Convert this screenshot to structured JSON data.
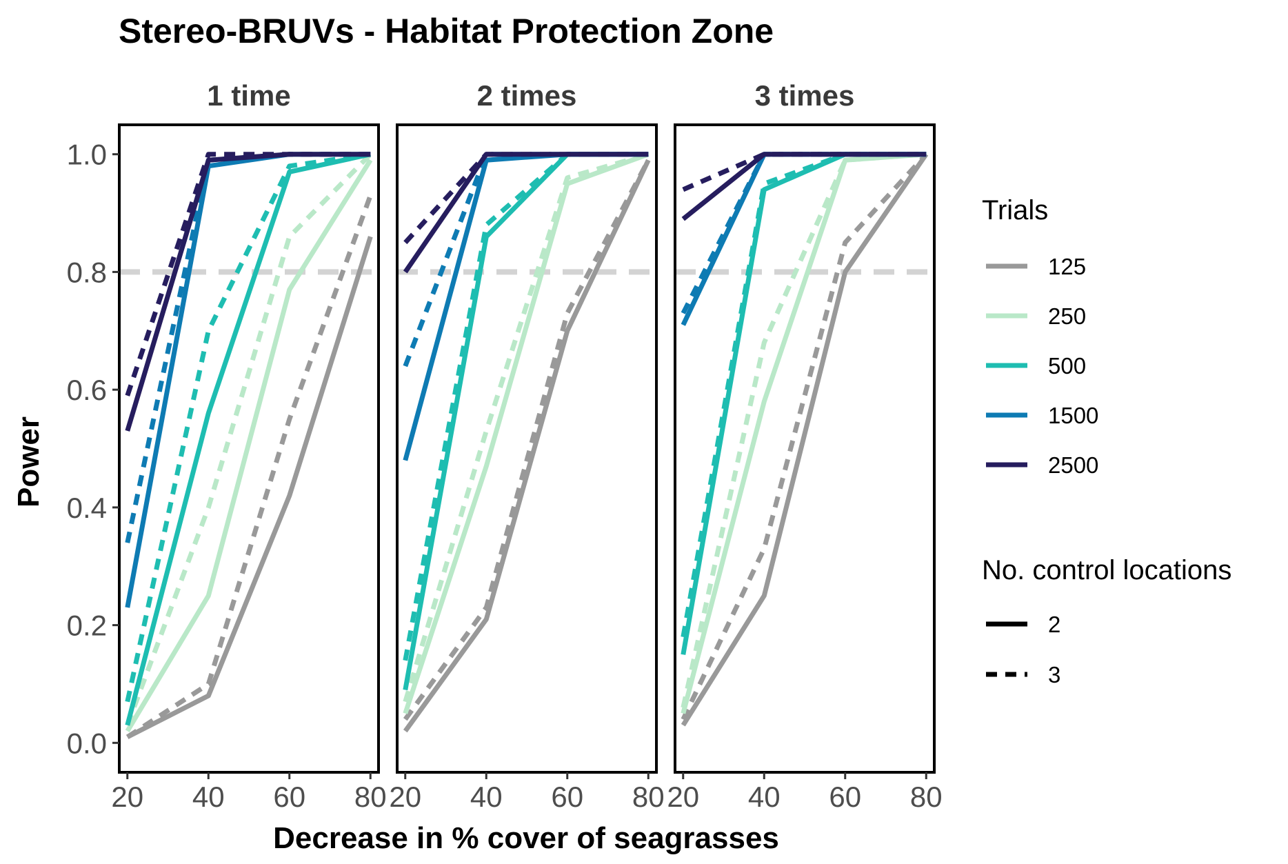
{
  "chart_data": {
    "type": "line",
    "title": "Stereo-BRUVs - Habitat Protection Zone",
    "xlabel": "Decrease in % cover of seagrasses",
    "ylabel": "Power",
    "x": [
      20,
      40,
      60,
      80
    ],
    "x_ticks": [
      "20",
      "40",
      "60",
      "80"
    ],
    "y_ticks": [
      "0.0",
      "0.2",
      "0.4",
      "0.6",
      "0.8",
      "1.0"
    ],
    "xlim": [
      18,
      82
    ],
    "ylim": [
      -0.05,
      1.05
    ],
    "reference_line": {
      "y": 0.8,
      "color": "#d3d3d3"
    },
    "grid": false,
    "legend_placement": "right",
    "legends": {
      "color": {
        "title": "Trials",
        "entries": [
          {
            "label": "125",
            "color": "#999999"
          },
          {
            "label": "250",
            "color": "#b9e8c8"
          },
          {
            "label": "500",
            "color": "#1ebdb1"
          },
          {
            "label": "1500",
            "color": "#0e7bb3"
          },
          {
            "label": "2500",
            "color": "#261d5e"
          }
        ]
      },
      "linetype": {
        "title": "No. control locations",
        "entries": [
          {
            "label": "2",
            "dash": "solid"
          },
          {
            "label": "3",
            "dash": "dashed"
          }
        ]
      }
    },
    "panels": [
      {
        "label": "1 time",
        "series": [
          {
            "trials": "125",
            "controls": "2",
            "values": [
              0.01,
              0.08,
              0.42,
              0.86
            ]
          },
          {
            "trials": "125",
            "controls": "3",
            "values": [
              0.01,
              0.1,
              0.55,
              0.93
            ]
          },
          {
            "trials": "250",
            "controls": "2",
            "values": [
              0.02,
              0.25,
              0.77,
              0.99
            ]
          },
          {
            "trials": "250",
            "controls": "3",
            "values": [
              0.03,
              0.4,
              0.86,
              1.0
            ]
          },
          {
            "trials": "500",
            "controls": "2",
            "values": [
              0.03,
              0.56,
              0.97,
              1.0
            ]
          },
          {
            "trials": "500",
            "controls": "3",
            "values": [
              0.07,
              0.7,
              0.98,
              1.0
            ]
          },
          {
            "trials": "1500",
            "controls": "2",
            "values": [
              0.23,
              0.98,
              1.0,
              1.0
            ]
          },
          {
            "trials": "1500",
            "controls": "3",
            "values": [
              0.34,
              0.99,
              1.0,
              1.0
            ]
          },
          {
            "trials": "2500",
            "controls": "2",
            "values": [
              0.53,
              0.99,
              1.0,
              1.0
            ]
          },
          {
            "trials": "2500",
            "controls": "3",
            "values": [
              0.59,
              1.0,
              1.0,
              1.0
            ]
          }
        ]
      },
      {
        "label": "2 times",
        "series": [
          {
            "trials": "125",
            "controls": "2",
            "values": [
              0.02,
              0.21,
              0.7,
              0.99
            ]
          },
          {
            "trials": "125",
            "controls": "3",
            "values": [
              0.04,
              0.23,
              0.73,
              0.99
            ]
          },
          {
            "trials": "250",
            "controls": "2",
            "values": [
              0.05,
              0.47,
              0.95,
              1.0
            ]
          },
          {
            "trials": "250",
            "controls": "3",
            "values": [
              0.07,
              0.53,
              0.96,
              1.0
            ]
          },
          {
            "trials": "500",
            "controls": "2",
            "values": [
              0.09,
              0.86,
              1.0,
              1.0
            ]
          },
          {
            "trials": "500",
            "controls": "3",
            "values": [
              0.14,
              0.88,
              1.0,
              1.0
            ]
          },
          {
            "trials": "1500",
            "controls": "2",
            "values": [
              0.48,
              0.99,
              1.0,
              1.0
            ]
          },
          {
            "trials": "1500",
            "controls": "3",
            "values": [
              0.64,
              1.0,
              1.0,
              1.0
            ]
          },
          {
            "trials": "2500",
            "controls": "2",
            "values": [
              0.8,
              1.0,
              1.0,
              1.0
            ]
          },
          {
            "trials": "2500",
            "controls": "3",
            "values": [
              0.85,
              1.0,
              1.0,
              1.0
            ]
          }
        ]
      },
      {
        "label": "3 times",
        "series": [
          {
            "trials": "125",
            "controls": "2",
            "values": [
              0.03,
              0.25,
              0.8,
              1.0
            ]
          },
          {
            "trials": "125",
            "controls": "3",
            "values": [
              0.04,
              0.33,
              0.85,
              1.0
            ]
          },
          {
            "trials": "250",
            "controls": "2",
            "values": [
              0.05,
              0.58,
              0.99,
              1.0
            ]
          },
          {
            "trials": "250",
            "controls": "3",
            "values": [
              0.06,
              0.68,
              0.99,
              1.0
            ]
          },
          {
            "trials": "500",
            "controls": "2",
            "values": [
              0.15,
              0.94,
              1.0,
              1.0
            ]
          },
          {
            "trials": "500",
            "controls": "3",
            "values": [
              0.18,
              0.95,
              1.0,
              1.0
            ]
          },
          {
            "trials": "1500",
            "controls": "2",
            "values": [
              0.71,
              1.0,
              1.0,
              1.0
            ]
          },
          {
            "trials": "1500",
            "controls": "3",
            "values": [
              0.73,
              1.0,
              1.0,
              1.0
            ]
          },
          {
            "trials": "2500",
            "controls": "2",
            "values": [
              0.89,
              1.0,
              1.0,
              1.0
            ]
          },
          {
            "trials": "2500",
            "controls": "3",
            "values": [
              0.94,
              1.0,
              1.0,
              1.0
            ]
          }
        ]
      }
    ]
  }
}
